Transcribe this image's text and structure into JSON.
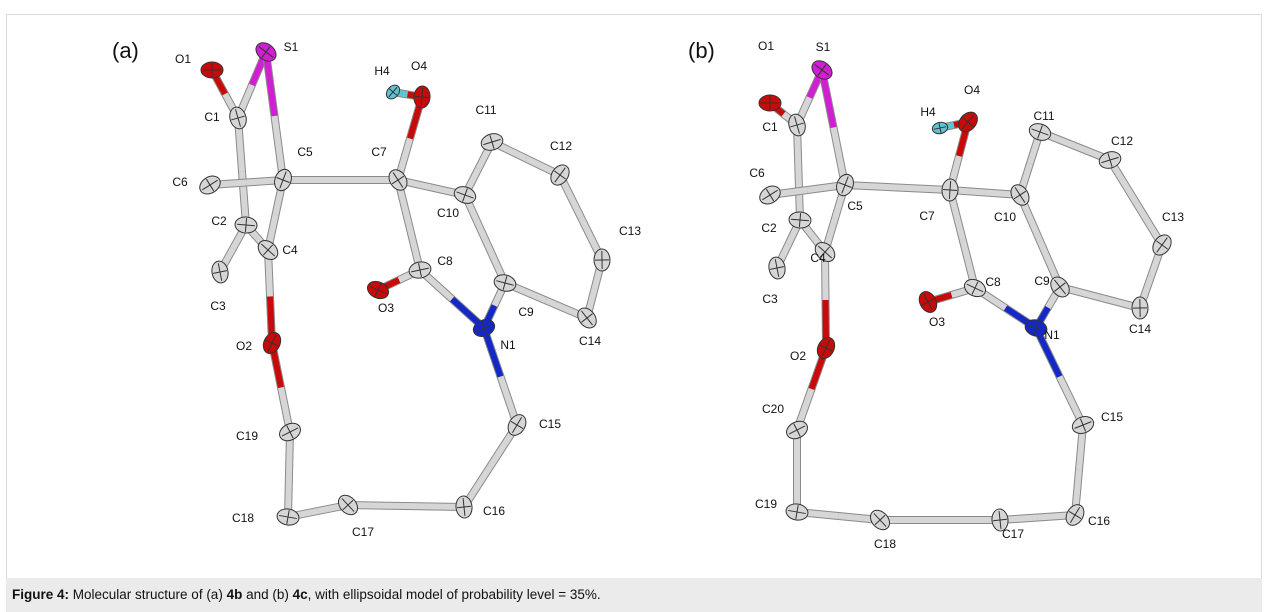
{
  "panels": [
    {
      "label": "(a)",
      "atoms": [
        "O1",
        "S1",
        "C1",
        "C5",
        "C6",
        "C2",
        "C4",
        "C3",
        "O2",
        "C19",
        "C18",
        "C17",
        "C16",
        "C15",
        "N1",
        "C9",
        "C14",
        "C13",
        "C12",
        "C11",
        "C10",
        "C7",
        "O4",
        "H4",
        "C8",
        "O3"
      ]
    },
    {
      "label": "(b)",
      "atoms": [
        "O1",
        "S1",
        "C1",
        "C5",
        "C6",
        "C2",
        "C4",
        "C3",
        "O2",
        "C20",
        "C19",
        "C18",
        "C17",
        "C16",
        "C15",
        "N1",
        "C9",
        "C14",
        "C13",
        "C12",
        "C11",
        "C10",
        "C7",
        "O4",
        "H4",
        "C8",
        "O3"
      ]
    }
  ],
  "caption": [
    "Figure 4:",
    " Molecular structure of (a) ",
    "4b",
    " and (b) ",
    "4c",
    ", with ellipsoidal model of probability level = 35%."
  ]
}
